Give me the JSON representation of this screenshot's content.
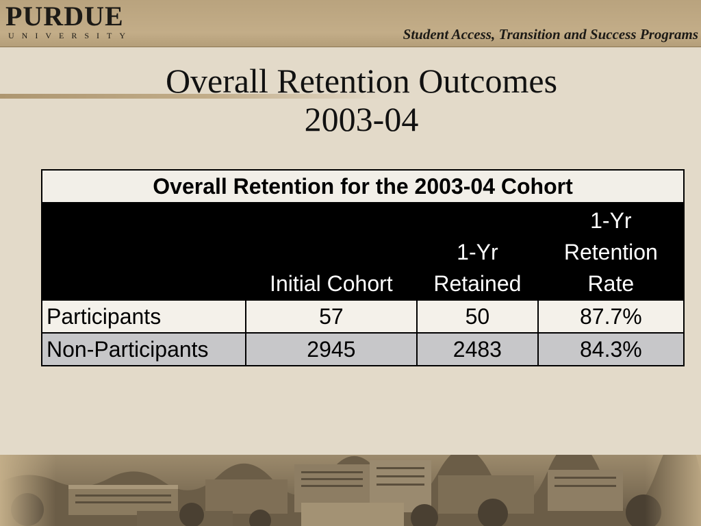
{
  "header": {
    "logo_word": "PURDUE",
    "logo_sub": "UNIVERSITY",
    "program": "Student Access, Transition and Success Programs"
  },
  "title": {
    "line1": "Overall Retention Outcomes",
    "line2": "2003-04"
  },
  "table": {
    "caption": "Overall Retention for the 2003-04 Cohort",
    "columns": [
      {
        "lines": [
          ""
        ]
      },
      {
        "lines": [
          "Initial Cohort"
        ]
      },
      {
        "lines": [
          "1-Yr",
          "Retained"
        ]
      },
      {
        "lines": [
          "1-Yr",
          "Retention",
          "Rate"
        ]
      }
    ],
    "rows": [
      {
        "label": "Participants",
        "initial": "57",
        "retained": "50",
        "rate": "87.7%"
      },
      {
        "label": "Non-Participants",
        "initial": "2945",
        "retained": "2483",
        "rate": "84.3%"
      }
    ]
  },
  "banner": {
    "icon": "campus-photo-icon",
    "colors": {
      "sky": "#9c8a6c",
      "buildings": "#5d5140",
      "trees": "#3f382c"
    }
  }
}
